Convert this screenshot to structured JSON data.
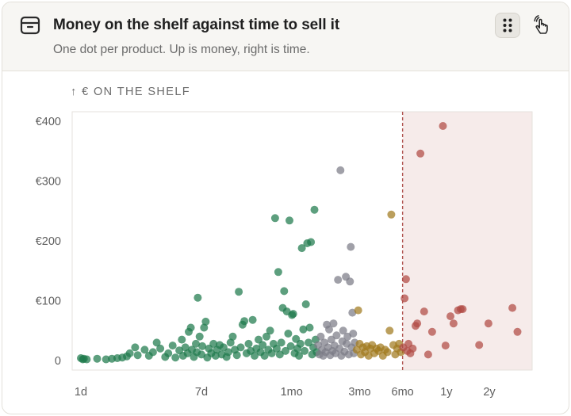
{
  "header": {
    "title": "Money on the shelf against time to sell it",
    "subtitle": "One dot per product. Up is money, right is time.",
    "icon": "package-box-icon",
    "buttons": [
      {
        "name": "grid-dots-icon",
        "active": true
      },
      {
        "name": "hand-gesture-icon",
        "active": false
      }
    ]
  },
  "chart_data": {
    "type": "scatter",
    "title": "",
    "ylabel": "↑ € ON THE SHELF",
    "xlabel": "",
    "x_scale": "log",
    "x_unit": "days",
    "x_ticks": [
      {
        "label": "1d",
        "value": 1
      },
      {
        "label": "7d",
        "value": 7
      },
      {
        "label": "1mo",
        "value": 30
      },
      {
        "label": "3mo",
        "value": 90
      },
      {
        "label": "6mo",
        "value": 180
      },
      {
        "label": "1y",
        "value": 365
      },
      {
        "label": "2y",
        "value": 730
      }
    ],
    "y_ticks": [
      {
        "label": "0",
        "value": 0
      },
      {
        "label": "€100",
        "value": 100
      },
      {
        "label": "€200",
        "value": 200
      },
      {
        "label": "€300",
        "value": 300
      },
      {
        "label": "€400",
        "value": 400
      }
    ],
    "ylim": [
      0,
      410
    ],
    "xlim": [
      0.85,
      1400
    ],
    "threshold": {
      "x": 180,
      "style": "dashed",
      "color": "#b0524f",
      "shaded_region_color": "#f6ebea"
    },
    "grid": false,
    "colors": {
      "fast": "#1e7a4c",
      "medium": "#7c7c86",
      "slow": "#a17a1e",
      "stale": "#b04a44"
    },
    "points": [
      {
        "x": 1.0,
        "y": 4,
        "group": "fast"
      },
      {
        "x": 1.03,
        "y": 2,
        "group": "fast"
      },
      {
        "x": 1.05,
        "y": 3,
        "group": "fast"
      },
      {
        "x": 1.1,
        "y": 2,
        "group": "fast"
      },
      {
        "x": 1.3,
        "y": 3,
        "group": "fast"
      },
      {
        "x": 1.5,
        "y": 2,
        "group": "fast"
      },
      {
        "x": 1.65,
        "y": 3,
        "group": "fast"
      },
      {
        "x": 1.8,
        "y": 4,
        "group": "fast"
      },
      {
        "x": 1.95,
        "y": 5,
        "group": "fast"
      },
      {
        "x": 2.1,
        "y": 7,
        "group": "fast"
      },
      {
        "x": 2.2,
        "y": 12,
        "group": "fast"
      },
      {
        "x": 2.4,
        "y": 22,
        "group": "fast"
      },
      {
        "x": 2.5,
        "y": 9,
        "group": "fast"
      },
      {
        "x": 2.8,
        "y": 18,
        "group": "fast"
      },
      {
        "x": 3.0,
        "y": 8,
        "group": "fast"
      },
      {
        "x": 3.2,
        "y": 14,
        "group": "fast"
      },
      {
        "x": 3.4,
        "y": 30,
        "group": "fast"
      },
      {
        "x": 3.6,
        "y": 20,
        "group": "fast"
      },
      {
        "x": 3.9,
        "y": 6,
        "group": "fast"
      },
      {
        "x": 4.1,
        "y": 12,
        "group": "fast"
      },
      {
        "x": 4.4,
        "y": 25,
        "group": "fast"
      },
      {
        "x": 4.6,
        "y": 5,
        "group": "fast"
      },
      {
        "x": 4.9,
        "y": 17,
        "group": "fast"
      },
      {
        "x": 5.1,
        "y": 35,
        "group": "fast"
      },
      {
        "x": 5.2,
        "y": 8,
        "group": "fast"
      },
      {
        "x": 5.4,
        "y": 22,
        "group": "fast"
      },
      {
        "x": 5.6,
        "y": 12,
        "group": "fast"
      },
      {
        "x": 5.7,
        "y": 48,
        "group": "fast"
      },
      {
        "x": 5.9,
        "y": 55,
        "group": "fast"
      },
      {
        "x": 6.0,
        "y": 18,
        "group": "fast"
      },
      {
        "x": 6.2,
        "y": 6,
        "group": "fast"
      },
      {
        "x": 6.4,
        "y": 28,
        "group": "fast"
      },
      {
        "x": 6.5,
        "y": 14,
        "group": "fast"
      },
      {
        "x": 6.6,
        "y": 105,
        "group": "fast"
      },
      {
        "x": 6.8,
        "y": 40,
        "group": "fast"
      },
      {
        "x": 7.0,
        "y": 10,
        "group": "fast"
      },
      {
        "x": 7.1,
        "y": 24,
        "group": "fast"
      },
      {
        "x": 7.3,
        "y": 55,
        "group": "fast"
      },
      {
        "x": 7.5,
        "y": 65,
        "group": "fast"
      },
      {
        "x": 7.7,
        "y": 5,
        "group": "fast"
      },
      {
        "x": 7.9,
        "y": 20,
        "group": "fast"
      },
      {
        "x": 8.2,
        "y": 12,
        "group": "fast"
      },
      {
        "x": 8.5,
        "y": 28,
        "group": "fast"
      },
      {
        "x": 8.8,
        "y": 8,
        "group": "fast"
      },
      {
        "x": 9.0,
        "y": 18,
        "group": "fast"
      },
      {
        "x": 9.4,
        "y": 26,
        "group": "fast"
      },
      {
        "x": 9.7,
        "y": 10,
        "group": "fast"
      },
      {
        "x": 10.0,
        "y": 22,
        "group": "fast"
      },
      {
        "x": 10.5,
        "y": 6,
        "group": "fast"
      },
      {
        "x": 10.8,
        "y": 14,
        "group": "fast"
      },
      {
        "x": 11.2,
        "y": 30,
        "group": "fast"
      },
      {
        "x": 11.6,
        "y": 40,
        "group": "fast"
      },
      {
        "x": 12.0,
        "y": 18,
        "group": "fast"
      },
      {
        "x": 12.4,
        "y": 9,
        "group": "fast"
      },
      {
        "x": 12.8,
        "y": 115,
        "group": "fast"
      },
      {
        "x": 13.2,
        "y": 22,
        "group": "fast"
      },
      {
        "x": 13.6,
        "y": 60,
        "group": "fast"
      },
      {
        "x": 14.0,
        "y": 66,
        "group": "fast"
      },
      {
        "x": 14.5,
        "y": 12,
        "group": "fast"
      },
      {
        "x": 15.0,
        "y": 28,
        "group": "fast"
      },
      {
        "x": 15.5,
        "y": 16,
        "group": "fast"
      },
      {
        "x": 16.0,
        "y": 68,
        "group": "fast"
      },
      {
        "x": 16.5,
        "y": 8,
        "group": "fast"
      },
      {
        "x": 17.0,
        "y": 20,
        "group": "fast"
      },
      {
        "x": 17.6,
        "y": 35,
        "group": "fast"
      },
      {
        "x": 18.2,
        "y": 14,
        "group": "fast"
      },
      {
        "x": 18.8,
        "y": 26,
        "group": "fast"
      },
      {
        "x": 19.4,
        "y": 8,
        "group": "fast"
      },
      {
        "x": 20.0,
        "y": 40,
        "group": "fast"
      },
      {
        "x": 20.6,
        "y": 18,
        "group": "fast"
      },
      {
        "x": 21.2,
        "y": 50,
        "group": "fast"
      },
      {
        "x": 21.8,
        "y": 12,
        "group": "fast"
      },
      {
        "x": 22.4,
        "y": 28,
        "group": "fast"
      },
      {
        "x": 23.0,
        "y": 238,
        "group": "fast"
      },
      {
        "x": 23.6,
        "y": 20,
        "group": "fast"
      },
      {
        "x": 24.2,
        "y": 148,
        "group": "fast"
      },
      {
        "x": 24.8,
        "y": 10,
        "group": "fast"
      },
      {
        "x": 25.4,
        "y": 30,
        "group": "fast"
      },
      {
        "x": 26.0,
        "y": 88,
        "group": "fast"
      },
      {
        "x": 26.6,
        "y": 116,
        "group": "fast"
      },
      {
        "x": 27.2,
        "y": 16,
        "group": "fast"
      },
      {
        "x": 27.8,
        "y": 82,
        "group": "fast"
      },
      {
        "x": 28.4,
        "y": 45,
        "group": "fast"
      },
      {
        "x": 29.0,
        "y": 234,
        "group": "fast"
      },
      {
        "x": 29.6,
        "y": 24,
        "group": "fast"
      },
      {
        "x": 30.2,
        "y": 76,
        "group": "fast"
      },
      {
        "x": 30.8,
        "y": 78,
        "group": "fast"
      },
      {
        "x": 31.5,
        "y": 12,
        "group": "fast"
      },
      {
        "x": 32.2,
        "y": 36,
        "group": "fast"
      },
      {
        "x": 33.0,
        "y": 20,
        "group": "fast"
      },
      {
        "x": 33.8,
        "y": 8,
        "group": "fast"
      },
      {
        "x": 34.6,
        "y": 28,
        "group": "fast"
      },
      {
        "x": 35.4,
        "y": 188,
        "group": "fast"
      },
      {
        "x": 36.2,
        "y": 52,
        "group": "fast"
      },
      {
        "x": 37.0,
        "y": 16,
        "group": "fast"
      },
      {
        "x": 37.8,
        "y": 94,
        "group": "fast"
      },
      {
        "x": 38.6,
        "y": 196,
        "group": "fast"
      },
      {
        "x": 39.4,
        "y": 30,
        "group": "fast"
      },
      {
        "x": 40.2,
        "y": 55,
        "group": "fast"
      },
      {
        "x": 41.0,
        "y": 198,
        "group": "fast"
      },
      {
        "x": 41.8,
        "y": 10,
        "group": "fast"
      },
      {
        "x": 42.6,
        "y": 22,
        "group": "fast"
      },
      {
        "x": 43.4,
        "y": 252,
        "group": "fast"
      },
      {
        "x": 44.2,
        "y": 35,
        "group": "fast"
      },
      {
        "x": 45.0,
        "y": 14,
        "group": "fast"
      },
      {
        "x": 46.0,
        "y": 26,
        "group": "medium"
      },
      {
        "x": 47.0,
        "y": 10,
        "group": "medium"
      },
      {
        "x": 48.0,
        "y": 40,
        "group": "medium"
      },
      {
        "x": 49.0,
        "y": 18,
        "group": "medium"
      },
      {
        "x": 50.0,
        "y": 8,
        "group": "medium"
      },
      {
        "x": 51.0,
        "y": 30,
        "group": "medium"
      },
      {
        "x": 52.0,
        "y": 14,
        "group": "medium"
      },
      {
        "x": 53.0,
        "y": 60,
        "group": "medium"
      },
      {
        "x": 54.0,
        "y": 22,
        "group": "medium"
      },
      {
        "x": 55.0,
        "y": 52,
        "group": "medium"
      },
      {
        "x": 56.0,
        "y": 9,
        "group": "medium"
      },
      {
        "x": 57.0,
        "y": 35,
        "group": "medium"
      },
      {
        "x": 58.0,
        "y": 16,
        "group": "medium"
      },
      {
        "x": 59.0,
        "y": 62,
        "group": "medium"
      },
      {
        "x": 60.0,
        "y": 25,
        "group": "medium"
      },
      {
        "x": 61.0,
        "y": 12,
        "group": "medium"
      },
      {
        "x": 62.0,
        "y": 42,
        "group": "medium"
      },
      {
        "x": 63.5,
        "y": 135,
        "group": "medium"
      },
      {
        "x": 65.0,
        "y": 20,
        "group": "medium"
      },
      {
        "x": 66.0,
        "y": 318,
        "group": "medium"
      },
      {
        "x": 67.0,
        "y": 8,
        "group": "medium"
      },
      {
        "x": 68.0,
        "y": 32,
        "group": "medium"
      },
      {
        "x": 69.0,
        "y": 50,
        "group": "medium"
      },
      {
        "x": 70.5,
        "y": 15,
        "group": "medium"
      },
      {
        "x": 72.0,
        "y": 140,
        "group": "medium"
      },
      {
        "x": 73.0,
        "y": 28,
        "group": "medium"
      },
      {
        "x": 74.0,
        "y": 40,
        "group": "medium"
      },
      {
        "x": 75.5,
        "y": 10,
        "group": "medium"
      },
      {
        "x": 77.0,
        "y": 132,
        "group": "medium"
      },
      {
        "x": 78.0,
        "y": 190,
        "group": "medium"
      },
      {
        "x": 79.0,
        "y": 22,
        "group": "medium"
      },
      {
        "x": 80.0,
        "y": 80,
        "group": "medium"
      },
      {
        "x": 81.0,
        "y": 45,
        "group": "medium"
      },
      {
        "x": 82.0,
        "y": 12,
        "group": "medium"
      },
      {
        "x": 83.0,
        "y": 30,
        "group": "medium"
      },
      {
        "x": 86.0,
        "y": 18,
        "group": "slow"
      },
      {
        "x": 88.0,
        "y": 84,
        "group": "slow"
      },
      {
        "x": 90.0,
        "y": 28,
        "group": "slow"
      },
      {
        "x": 92.0,
        "y": 10,
        "group": "slow"
      },
      {
        "x": 95.0,
        "y": 22,
        "group": "slow"
      },
      {
        "x": 98.0,
        "y": 14,
        "group": "slow"
      },
      {
        "x": 101.0,
        "y": 24,
        "group": "slow"
      },
      {
        "x": 104.0,
        "y": 8,
        "group": "slow"
      },
      {
        "x": 107.0,
        "y": 20,
        "group": "slow"
      },
      {
        "x": 110.0,
        "y": 26,
        "group": "slow"
      },
      {
        "x": 114.0,
        "y": 12,
        "group": "slow"
      },
      {
        "x": 118.0,
        "y": 20,
        "group": "slow"
      },
      {
        "x": 122.0,
        "y": 16,
        "group": "slow"
      },
      {
        "x": 126.0,
        "y": 22,
        "group": "slow"
      },
      {
        "x": 131.0,
        "y": 8,
        "group": "slow"
      },
      {
        "x": 136.0,
        "y": 18,
        "group": "slow"
      },
      {
        "x": 141.0,
        "y": 14,
        "group": "slow"
      },
      {
        "x": 146.0,
        "y": 50,
        "group": "slow"
      },
      {
        "x": 150.0,
        "y": 244,
        "group": "slow"
      },
      {
        "x": 155.0,
        "y": 26,
        "group": "slow"
      },
      {
        "x": 160.0,
        "y": 10,
        "group": "slow"
      },
      {
        "x": 165.0,
        "y": 20,
        "group": "slow"
      },
      {
        "x": 170.0,
        "y": 28,
        "group": "slow"
      },
      {
        "x": 175.0,
        "y": 14,
        "group": "slow"
      },
      {
        "x": 182.0,
        "y": 22,
        "group": "stale"
      },
      {
        "x": 186.0,
        "y": 104,
        "group": "stale"
      },
      {
        "x": 190.0,
        "y": 136,
        "group": "stale"
      },
      {
        "x": 194.0,
        "y": 16,
        "group": "stale"
      },
      {
        "x": 198.0,
        "y": 28,
        "group": "stale"
      },
      {
        "x": 204.0,
        "y": 12,
        "group": "stale"
      },
      {
        "x": 212.0,
        "y": 20,
        "group": "stale"
      },
      {
        "x": 222.0,
        "y": 58,
        "group": "stale"
      },
      {
        "x": 228.0,
        "y": 62,
        "group": "stale"
      },
      {
        "x": 240.0,
        "y": 346,
        "group": "stale"
      },
      {
        "x": 255.0,
        "y": 82,
        "group": "stale"
      },
      {
        "x": 272.0,
        "y": 10,
        "group": "stale"
      },
      {
        "x": 290.0,
        "y": 48,
        "group": "stale"
      },
      {
        "x": 345.0,
        "y": 392,
        "group": "stale"
      },
      {
        "x": 360.0,
        "y": 25,
        "group": "stale"
      },
      {
        "x": 390.0,
        "y": 74,
        "group": "stale"
      },
      {
        "x": 410.0,
        "y": 62,
        "group": "stale"
      },
      {
        "x": 440.0,
        "y": 84,
        "group": "stale"
      },
      {
        "x": 460.0,
        "y": 86,
        "group": "stale"
      },
      {
        "x": 475.0,
        "y": 86,
        "group": "stale"
      },
      {
        "x": 620.0,
        "y": 26,
        "group": "stale"
      },
      {
        "x": 720.0,
        "y": 62,
        "group": "stale"
      },
      {
        "x": 1060.0,
        "y": 88,
        "group": "stale"
      },
      {
        "x": 1150.0,
        "y": 48,
        "group": "stale"
      }
    ]
  }
}
